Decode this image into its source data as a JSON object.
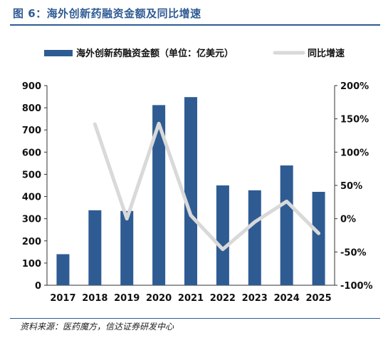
{
  "figure": {
    "title": "图 6：海外创新药融资金额及同比增速",
    "source": "资料来源：医药魔方，信达证券研发中心"
  },
  "colors": {
    "bar": "#2f5b93",
    "line": "#d9d9d9",
    "title": "#2f5b93"
  },
  "chart_data": {
    "type": "bar",
    "categories": [
      "2017",
      "2018",
      "2019",
      "2020",
      "2021",
      "2022",
      "2023",
      "2024",
      "2025"
    ],
    "series": [
      {
        "name": "海外创新药融资金额（单位：亿美元）",
        "type": "bar",
        "axis": "left",
        "values": [
          140,
          338,
          335,
          812,
          848,
          450,
          428,
          540,
          421
        ]
      },
      {
        "name": "同比增速",
        "type": "line",
        "axis": "right",
        "unit": "%",
        "values": [
          null,
          142,
          0,
          143,
          5,
          -46,
          -5,
          26,
          -22
        ]
      }
    ],
    "ylim": [
      0,
      900
    ],
    "yticks": [
      "0",
      "100",
      "200",
      "300",
      "400",
      "500",
      "600",
      "700",
      "800",
      "900"
    ],
    "y2lim": [
      -100,
      200
    ],
    "y2ticks": [
      "-100%",
      "-50%",
      "0%",
      "50%",
      "100%",
      "150%",
      "200%"
    ],
    "legend": "top",
    "grid": false
  }
}
